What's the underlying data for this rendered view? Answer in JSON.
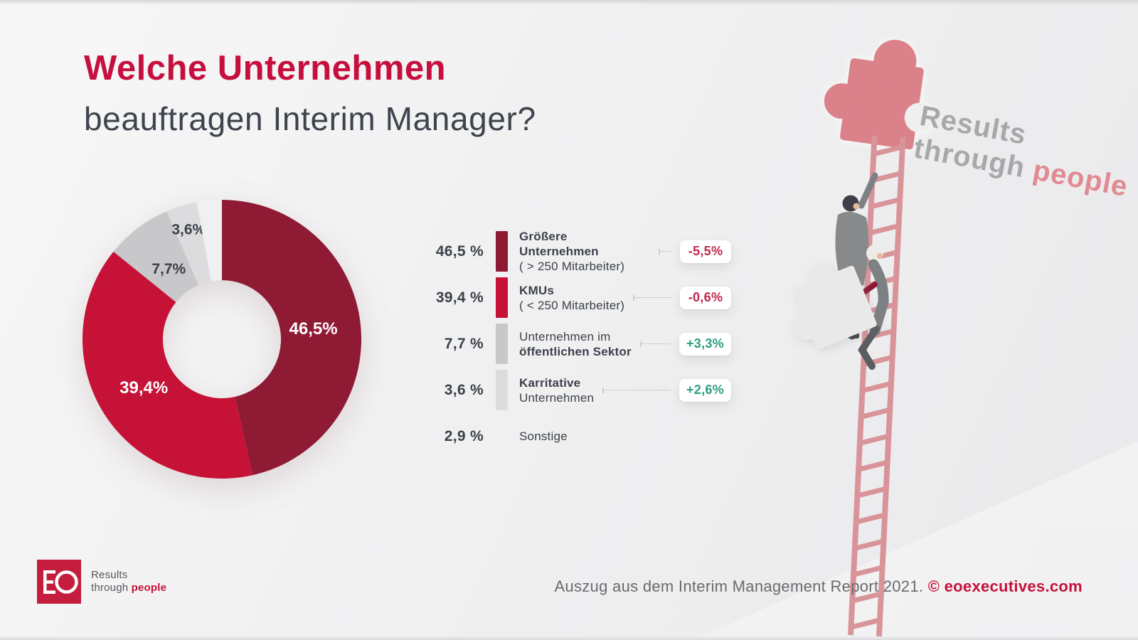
{
  "page": {
    "accent_red": "#c60f3e",
    "background": "#efeff0"
  },
  "header": {
    "title_line1": "Welche Unternehmen",
    "title_line2": "beauftragen Interim Manager?"
  },
  "chart_data": {
    "type": "pie",
    "donut": true,
    "title": "Welche Unternehmen beauftragen Interim Manager?",
    "unit": "percent",
    "start_angle": "top",
    "direction": "clockwise",
    "segments": [
      {
        "name": "Größere Unternehmen (> 250 Mitarbeiter)",
        "value": 46.5,
        "pie_label": "46,5%",
        "pie_label_color": "#ffffff",
        "pie_label_radius": 0.66,
        "pie_label_size": 24,
        "color": "#8e1a33",
        "legend_value": "46,5 %",
        "legend_lines": [
          {
            "text": "Größere Unternehmen",
            "bold": true
          },
          {
            "text": "( > 250 Mitarbeiter)",
            "bold": false
          }
        ],
        "change": "-5,5%",
        "trend": "down"
      },
      {
        "name": "KMUs (< 250 Mitarbeiter)",
        "value": 39.4,
        "pie_label": "39,4%",
        "pie_label_color": "#ffffff",
        "pie_label_radius": 0.66,
        "pie_label_size": 24,
        "color": "#c51236",
        "legend_value": "39,4 %",
        "legend_lines": [
          {
            "text": "KMUs",
            "bold": true
          },
          {
            "text": "( < 250 Mitarbeiter)",
            "bold": false
          }
        ],
        "change": "-0,6%",
        "trend": "down"
      },
      {
        "name": "Unternehmen im öffentlichen Sektor",
        "value": 7.7,
        "pie_label": "7,7%",
        "pie_label_color": "#3b414a",
        "pie_label_radius": 0.63,
        "pie_label_size": 21,
        "color": "#c8c7c9",
        "legend_value": "7,7 %",
        "legend_lines": [
          {
            "text": "Unternehmen im",
            "bold": false
          },
          {
            "text": "öffentlichen Sektor",
            "bold": true
          }
        ],
        "change": "+3,3%",
        "trend": "up"
      },
      {
        "name": "Karritative Unternehmen",
        "value": 3.6,
        "pie_label": "3,6%",
        "pie_label_color": "#3b414a",
        "pie_label_radius": 0.82,
        "pie_label_size": 21,
        "color": "#dcdcde",
        "legend_value": "3,6 %",
        "legend_lines": [
          {
            "text": "Karritative",
            "bold": true
          },
          {
            "text": "Unternehmen",
            "bold": false
          }
        ],
        "change": "+2,6%",
        "trend": "up"
      },
      {
        "name": "Sonstige",
        "value": 2.9,
        "pie_label": null,
        "pie_label_color": null,
        "pie_label_radius": null,
        "pie_label_size": null,
        "color": "#f0f0f1",
        "legend_value": "2,9 %",
        "legend_lines": [
          {
            "text": "Sonstige",
            "bold": false
          }
        ],
        "change": null,
        "trend": null
      }
    ],
    "trend_colors": {
      "down": "#c2294d",
      "up": "#2d9e80"
    },
    "legend_position": "right"
  },
  "illustration": {
    "tagline": {
      "word1": "Results",
      "word2": "through",
      "word3": "people"
    },
    "elements": [
      "puzzle-piece-red",
      "ladder",
      "climbing-businessman",
      "businessman-carrying-puzzle",
      "puzzle-piece-gray"
    ],
    "ladder_color": "#d9949a",
    "puzzle_red": "#db818a",
    "puzzle_gray": "#e9e9ea"
  },
  "footer": {
    "logo": {
      "text": "EO",
      "tagline_line1": "Results",
      "tagline_line2_gray": "through",
      "tagline_line2_red": "people"
    },
    "source_text": "Auszug aus dem Interim Management Report 2021. ",
    "source_link": "© eoexecutives.com"
  }
}
